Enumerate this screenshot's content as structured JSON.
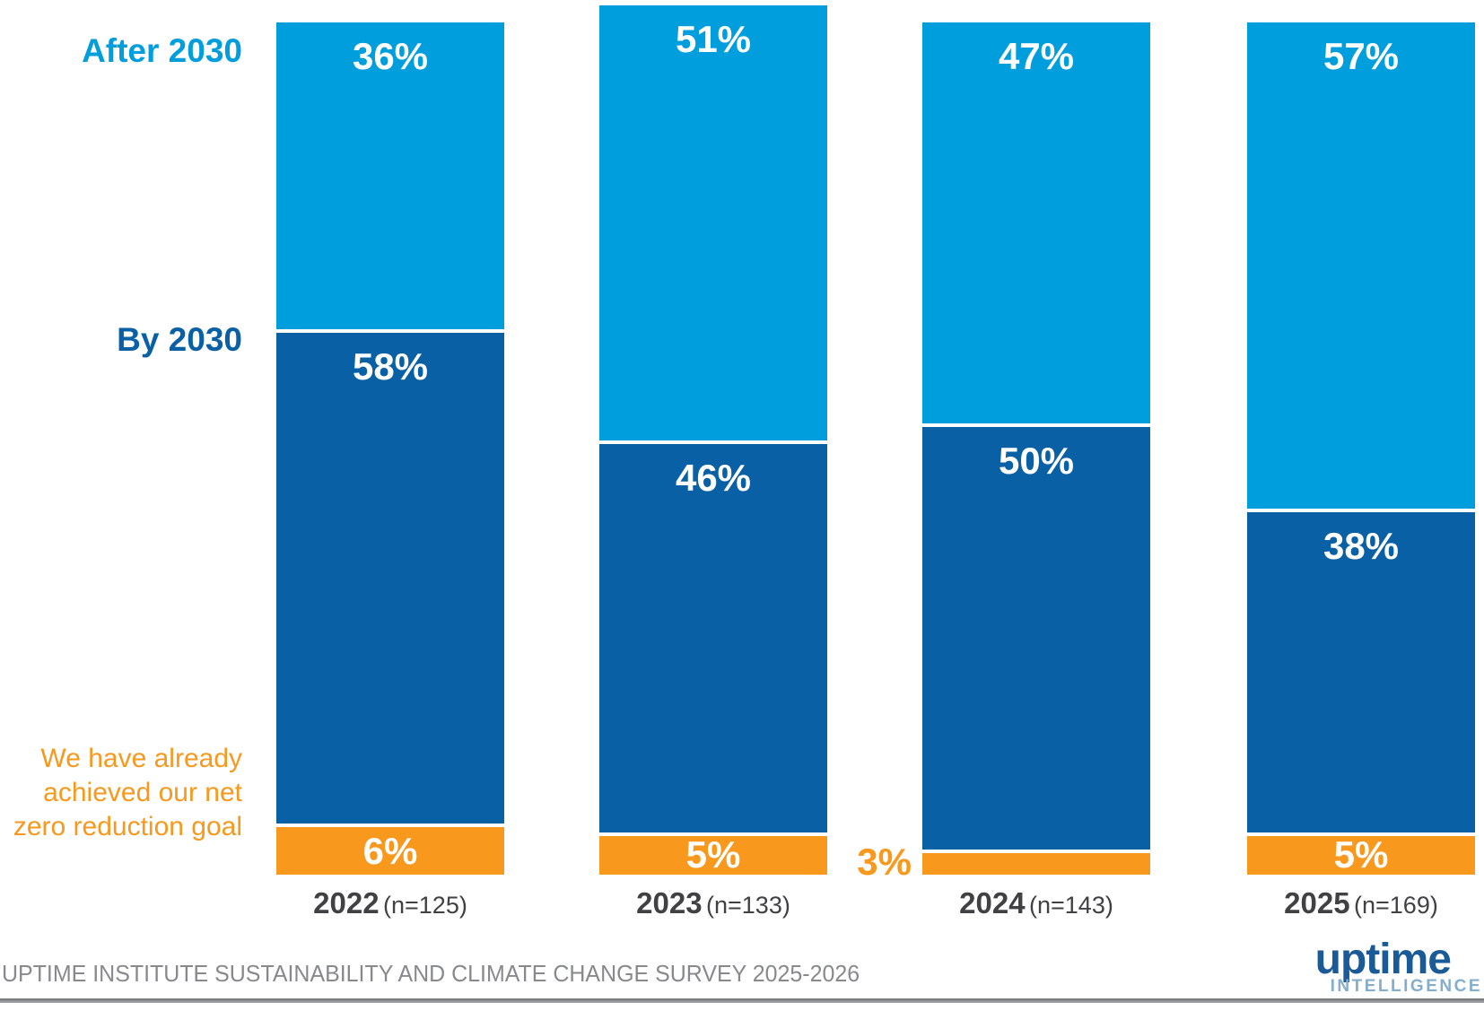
{
  "chart_data": {
    "type": "bar",
    "stacked": true,
    "orientation": "vertical",
    "unit": "%",
    "value_label_format": "percent",
    "legend_position": "left",
    "categories": [
      {
        "label": "2022",
        "n": "(n=125)"
      },
      {
        "label": "2023",
        "n": "(n=133)"
      },
      {
        "label": "2024",
        "n": "(n=143)"
      },
      {
        "label": "2025",
        "n": "(n=169)"
      }
    ],
    "series": [
      {
        "name": "After 2030",
        "color": "#009EDC",
        "values": [
          36,
          51,
          47,
          57
        ]
      },
      {
        "name": "By 2030",
        "color": "#0A60A5",
        "values": [
          58,
          46,
          50,
          38
        ]
      },
      {
        "name": "We have already achieved our net zero reduction goal",
        "color": "#F8981D",
        "values": [
          6,
          5,
          3,
          5
        ]
      }
    ]
  },
  "legend": {
    "after_2030": {
      "label": "After 2030",
      "color": "#009EDC"
    },
    "by_2030": {
      "label": "By 2030",
      "color": "#0A60A5"
    },
    "achieved": {
      "color": "#F8981D",
      "lines": [
        "We have already",
        "achieved our net",
        "zero reduction goal"
      ]
    }
  },
  "footer": {
    "source_text": "UPTIME INSTITUTE SUSTAINABILITY AND CLIMATE CHANGE SURVEY 2025-2026"
  },
  "logo": {
    "wordmark": "uptime",
    "wordmark_color": "#1A5A96",
    "sub_label": "INTELLIGENCE",
    "sub_color": "#85AECE"
  }
}
